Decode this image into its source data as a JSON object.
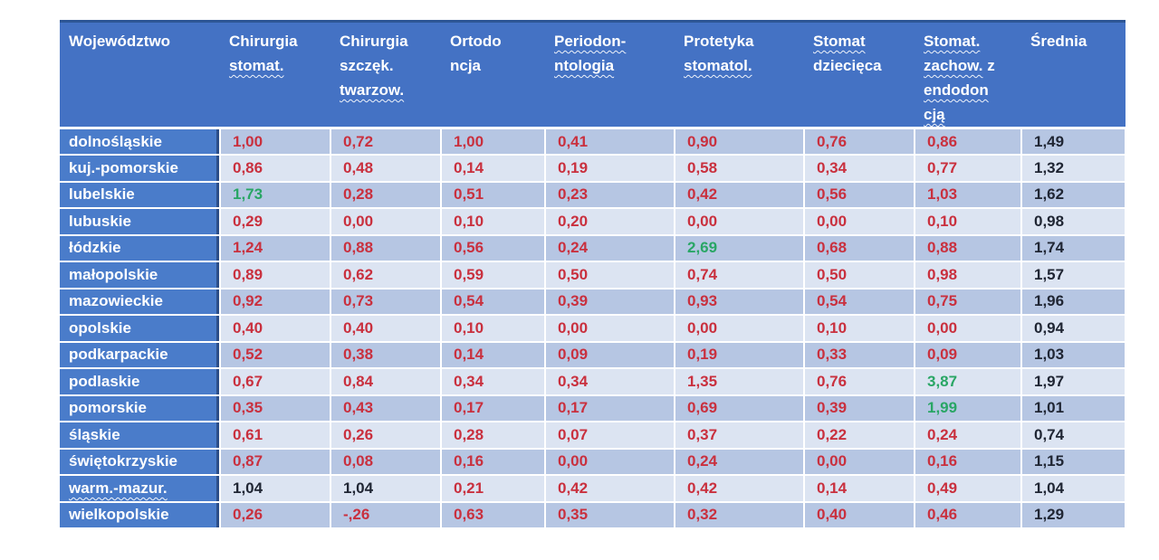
{
  "chart_data": {
    "type": "table",
    "colors": {
      "header_bg": "#4472c4",
      "header_top_edge": "#2d5695",
      "label_bg": "#4a7cca",
      "label_edge": "#2c4e88",
      "band_dark": "#b6c6e3",
      "band_light": "#dce4f2",
      "value_red": "#c9303e",
      "value_green": "#29a665",
      "value_black": "#202634",
      "header_text": "#ffffff"
    },
    "columns": [
      {
        "id": "wojewodztwo",
        "lines": [
          [
            {
              "t": "Województwo",
              "w": false
            }
          ]
        ]
      },
      {
        "id": "chirurgia-stomat",
        "lines": [
          [
            {
              "t": "Chirurgia",
              "w": false
            }
          ],
          [
            {
              "t": "stomat.",
              "w": true
            }
          ]
        ]
      },
      {
        "id": "chirurgia-szczek-twarzow",
        "lines": [
          [
            {
              "t": "Chirurgia",
              "w": false
            }
          ],
          [
            {
              "t": "szczęk.",
              "w": false
            }
          ],
          [
            {
              "t": "twarzow.",
              "w": true
            }
          ]
        ]
      },
      {
        "id": "ortodoncja",
        "lines": [
          [
            {
              "t": "Ortodo",
              "w": false
            }
          ],
          [
            {
              "t": "ncja",
              "w": false
            }
          ]
        ]
      },
      {
        "id": "periodontologia",
        "lines": [
          [
            {
              "t": "Periodon-",
              "w": true
            }
          ],
          [
            {
              "t": "ntologia",
              "w": true
            }
          ]
        ]
      },
      {
        "id": "protetyka-stomatol",
        "lines": [
          [
            {
              "t": "Protetyka",
              "w": false
            }
          ],
          [
            {
              "t": "stomatol.",
              "w": true
            }
          ]
        ]
      },
      {
        "id": "stomat-dziecieca",
        "lines": [
          [
            {
              "t": "Stomat",
              "w": true
            }
          ],
          [
            {
              "t": "dziecięca",
              "w": false
            }
          ]
        ]
      },
      {
        "id": "stomat-zachow-endodoncja",
        "lines": [
          [
            {
              "t": "Stomat.",
              "w": true
            }
          ],
          [
            {
              "t": "zachow.",
              "w": true
            },
            {
              "t": " z",
              "w": false
            }
          ],
          [
            {
              "t": "endodon",
              "w": true
            }
          ],
          [
            {
              "t": "cją",
              "w": true
            }
          ]
        ]
      },
      {
        "id": "srednia",
        "lines": [
          [
            {
              "t": "Średnia",
              "w": false
            }
          ]
        ]
      }
    ],
    "rows": [
      {
        "label": "dolnośląskie",
        "label_wavy": false,
        "values": [
          {
            "text": "1,00",
            "color": "red"
          },
          {
            "text": "0,72",
            "color": "red"
          },
          {
            "text": "1,00",
            "color": "red"
          },
          {
            "text": "0,41",
            "color": "red"
          },
          {
            "text": "0,90",
            "color": "red"
          },
          {
            "text": "0,76",
            "color": "red"
          },
          {
            "text": "0,86",
            "color": "red"
          },
          {
            "text": "1,49",
            "color": "black"
          }
        ]
      },
      {
        "label": "kuj.-pomorskie",
        "label_wavy": false,
        "values": [
          {
            "text": "0,86",
            "color": "red"
          },
          {
            "text": "0,48",
            "color": "red"
          },
          {
            "text": "0,14",
            "color": "red"
          },
          {
            "text": "0,19",
            "color": "red"
          },
          {
            "text": "0,58",
            "color": "red"
          },
          {
            "text": "0,34",
            "color": "red"
          },
          {
            "text": "0,77",
            "color": "red"
          },
          {
            "text": "1,32",
            "color": "black"
          }
        ]
      },
      {
        "label": "lubelskie",
        "label_wavy": false,
        "values": [
          {
            "text": "1,73",
            "color": "green"
          },
          {
            "text": "0,28",
            "color": "red"
          },
          {
            "text": "0,51",
            "color": "red"
          },
          {
            "text": "0,23",
            "color": "red"
          },
          {
            "text": "0,42",
            "color": "red"
          },
          {
            "text": "0,56",
            "color": "red"
          },
          {
            "text": "1,03",
            "color": "red"
          },
          {
            "text": "1,62",
            "color": "black"
          }
        ]
      },
      {
        "label": "lubuskie",
        "label_wavy": false,
        "values": [
          {
            "text": "0,29",
            "color": "red"
          },
          {
            "text": "0,00",
            "color": "red"
          },
          {
            "text": "0,10",
            "color": "red"
          },
          {
            "text": "0,20",
            "color": "red"
          },
          {
            "text": "0,00",
            "color": "red"
          },
          {
            "text": "0,00",
            "color": "red"
          },
          {
            "text": "0,10",
            "color": "red"
          },
          {
            "text": "0,98",
            "color": "black"
          }
        ]
      },
      {
        "label": "łódzkie",
        "label_wavy": false,
        "values": [
          {
            "text": "1,24",
            "color": "red"
          },
          {
            "text": "0,88",
            "color": "red"
          },
          {
            "text": "0,56",
            "color": "red"
          },
          {
            "text": "0,24",
            "color": "red"
          },
          {
            "text": "2,69",
            "color": "green"
          },
          {
            "text": "0,68",
            "color": "red"
          },
          {
            "text": "0,88",
            "color": "red"
          },
          {
            "text": "1,74",
            "color": "black"
          }
        ]
      },
      {
        "label": "małopolskie",
        "label_wavy": false,
        "values": [
          {
            "text": "0,89",
            "color": "red"
          },
          {
            "text": "0,62",
            "color": "red"
          },
          {
            "text": "0,59",
            "color": "red"
          },
          {
            "text": "0,50",
            "color": "red"
          },
          {
            "text": "0,74",
            "color": "red"
          },
          {
            "text": "0,50",
            "color": "red"
          },
          {
            "text": "0,98",
            "color": "red"
          },
          {
            "text": "1,57",
            "color": "black"
          }
        ]
      },
      {
        "label": "mazowieckie",
        "label_wavy": false,
        "values": [
          {
            "text": "0,92",
            "color": "red"
          },
          {
            "text": "0,73",
            "color": "red"
          },
          {
            "text": "0,54",
            "color": "red"
          },
          {
            "text": "0,39",
            "color": "red"
          },
          {
            "text": "0,93",
            "color": "red"
          },
          {
            "text": "0,54",
            "color": "red"
          },
          {
            "text": "0,75",
            "color": "red"
          },
          {
            "text": "1,96",
            "color": "black"
          }
        ]
      },
      {
        "label": "opolskie",
        "label_wavy": false,
        "values": [
          {
            "text": "0,40",
            "color": "red"
          },
          {
            "text": "0,40",
            "color": "red"
          },
          {
            "text": "0,10",
            "color": "red"
          },
          {
            "text": "0,00",
            "color": "red"
          },
          {
            "text": "0,00",
            "color": "red"
          },
          {
            "text": "0,10",
            "color": "red"
          },
          {
            "text": "0,00",
            "color": "red"
          },
          {
            "text": "0,94",
            "color": "black"
          }
        ]
      },
      {
        "label": "podkarpackie",
        "label_wavy": false,
        "values": [
          {
            "text": "0,52",
            "color": "red"
          },
          {
            "text": "0,38",
            "color": "red"
          },
          {
            "text": "0,14",
            "color": "red"
          },
          {
            "text": "0,09",
            "color": "red"
          },
          {
            "text": "0,19",
            "color": "red"
          },
          {
            "text": "0,33",
            "color": "red"
          },
          {
            "text": "0,09",
            "color": "red"
          },
          {
            "text": "1,03",
            "color": "black"
          }
        ]
      },
      {
        "label": "podlaskie",
        "label_wavy": false,
        "values": [
          {
            "text": "0,67",
            "color": "red"
          },
          {
            "text": "0,84",
            "color": "red"
          },
          {
            "text": "0,34",
            "color": "red"
          },
          {
            "text": "0,34",
            "color": "red"
          },
          {
            "text": "1,35",
            "color": "red"
          },
          {
            "text": "0,76",
            "color": "red"
          },
          {
            "text": "3,87",
            "color": "green"
          },
          {
            "text": "1,97",
            "color": "black"
          }
        ]
      },
      {
        "label": "pomorskie",
        "label_wavy": false,
        "values": [
          {
            "text": "0,35",
            "color": "red"
          },
          {
            "text": "0,43",
            "color": "red"
          },
          {
            "text": "0,17",
            "color": "red"
          },
          {
            "text": "0,17",
            "color": "red"
          },
          {
            "text": "0,69",
            "color": "red"
          },
          {
            "text": "0,39",
            "color": "red"
          },
          {
            "text": "1,99",
            "color": "green"
          },
          {
            "text": "1,01",
            "color": "black"
          }
        ]
      },
      {
        "label": "śląskie",
        "label_wavy": false,
        "values": [
          {
            "text": "0,61",
            "color": "red"
          },
          {
            "text": "0,26",
            "color": "red"
          },
          {
            "text": "0,28",
            "color": "red"
          },
          {
            "text": "0,07",
            "color": "red"
          },
          {
            "text": "0,37",
            "color": "red"
          },
          {
            "text": "0,22",
            "color": "red"
          },
          {
            "text": "0,24",
            "color": "red"
          },
          {
            "text": "0,74",
            "color": "black"
          }
        ]
      },
      {
        "label": "świętokrzyskie",
        "label_wavy": false,
        "values": [
          {
            "text": "0,87",
            "color": "red"
          },
          {
            "text": "0,08",
            "color": "red"
          },
          {
            "text": "0,16",
            "color": "red"
          },
          {
            "text": "0,00",
            "color": "red"
          },
          {
            "text": "0,24",
            "color": "red"
          },
          {
            "text": "0,00",
            "color": "red"
          },
          {
            "text": "0,16",
            "color": "red"
          },
          {
            "text": "1,15",
            "color": "black"
          }
        ]
      },
      {
        "label": "warm.-mazur.",
        "label_wavy": true,
        "values": [
          {
            "text": "1,04",
            "color": "black"
          },
          {
            "text": "1,04",
            "color": "black"
          },
          {
            "text": "0,21",
            "color": "red"
          },
          {
            "text": "0,42",
            "color": "red"
          },
          {
            "text": "0,42",
            "color": "red"
          },
          {
            "text": "0,14",
            "color": "red"
          },
          {
            "text": "0,49",
            "color": "red"
          },
          {
            "text": "1,04",
            "color": "black"
          }
        ]
      },
      {
        "label": "wielkopolskie",
        "label_wavy": false,
        "values": [
          {
            "text": "0,26",
            "color": "red"
          },
          {
            "text": "-,26",
            "color": "red"
          },
          {
            "text": "0,63",
            "color": "red"
          },
          {
            "text": "0,35",
            "color": "red"
          },
          {
            "text": "0,32",
            "color": "red"
          },
          {
            "text": "0,40",
            "color": "red"
          },
          {
            "text": "0,46",
            "color": "red"
          },
          {
            "text": "1,29",
            "color": "black"
          }
        ]
      }
    ]
  }
}
